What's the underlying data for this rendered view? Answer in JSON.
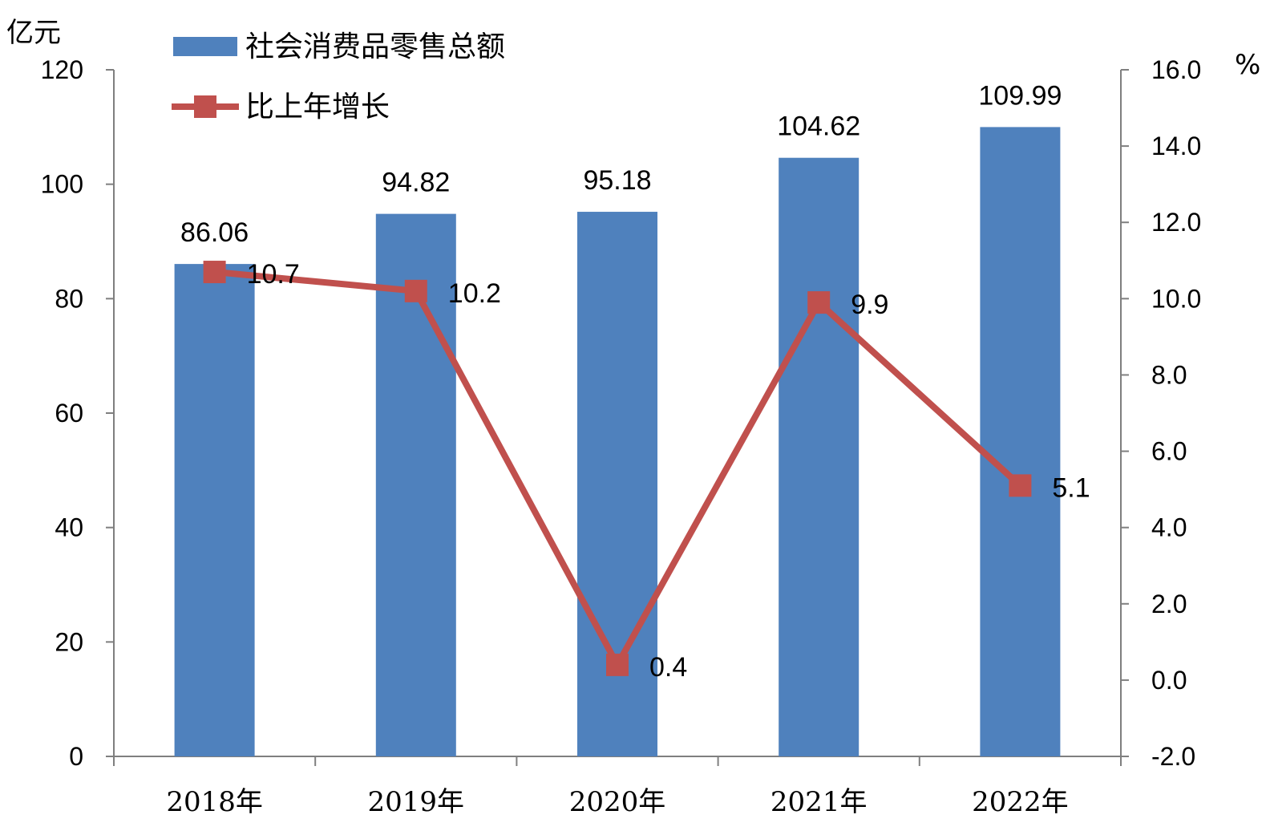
{
  "chart_data": {
    "type": "bar",
    "categories": [
      "2018年",
      "2019年",
      "2020年",
      "2021年",
      "2022年"
    ],
    "series": [
      {
        "name": "社会消费品零售总额",
        "type": "bar",
        "axis": "left",
        "color": "#4F81BD",
        "values": [
          86.06,
          94.82,
          95.18,
          104.62,
          109.99
        ],
        "labels": [
          "86.06",
          "94.82",
          "95.18",
          "104.62",
          "109.99"
        ]
      },
      {
        "name": "比上年增长",
        "type": "line",
        "axis": "right",
        "color": "#C0504D",
        "values": [
          10.7,
          10.2,
          0.4,
          9.9,
          5.1
        ],
        "labels": [
          "10.7",
          "10.2",
          "0.4",
          "9.9",
          "5.1"
        ]
      }
    ],
    "y_left": {
      "label": "亿元",
      "ylim": [
        0,
        120
      ],
      "ticks": [
        "0",
        "20",
        "40",
        "60",
        "80",
        "100",
        "120"
      ]
    },
    "y_right": {
      "label": "%",
      "ylim": [
        -2,
        16
      ],
      "ticks": [
        "-2.0",
        "0.0",
        "2.0",
        "4.0",
        "6.0",
        "8.0",
        "10.0",
        "12.0",
        "14.0",
        "16.0"
      ]
    },
    "legend": {
      "position": "top-left"
    },
    "grid": false,
    "axis_color": "#7F7F7F"
  }
}
